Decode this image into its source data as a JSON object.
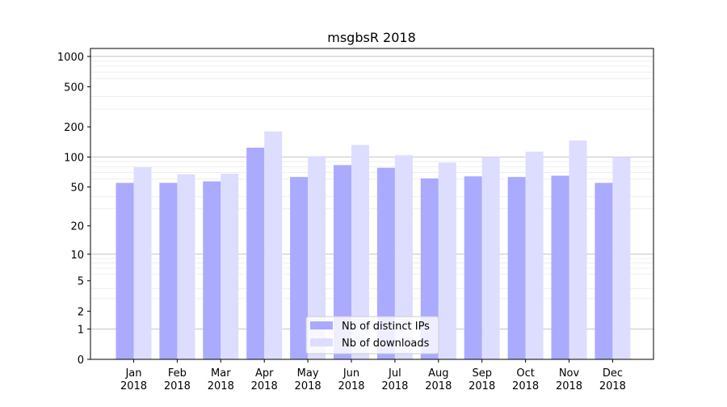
{
  "chart_data": {
    "type": "bar",
    "title": "msgbsR 2018",
    "xlabel": "",
    "ylabel": "",
    "yscale": "log(1+y)",
    "ylim": [
      0,
      1200
    ],
    "grid": true,
    "legend_position": "bottom-center",
    "categories": [
      [
        "Jan",
        "2018"
      ],
      [
        "Feb",
        "2018"
      ],
      [
        "Mar",
        "2018"
      ],
      [
        "Apr",
        "2018"
      ],
      [
        "May",
        "2018"
      ],
      [
        "Jun",
        "2018"
      ],
      [
        "Jul",
        "2018"
      ],
      [
        "Aug",
        "2018"
      ],
      [
        "Sep",
        "2018"
      ],
      [
        "Oct",
        "2018"
      ],
      [
        "Nov",
        "2018"
      ],
      [
        "Dec",
        "2018"
      ]
    ],
    "yticks": [
      0,
      1,
      2,
      5,
      10,
      20,
      50,
      100,
      200,
      500,
      1000
    ],
    "series": [
      {
        "name": "Nb of distinct IPs",
        "color": "#aaaaff",
        "values": [
          55,
          55,
          57,
          124,
          63,
          83,
          78,
          61,
          64,
          63,
          65,
          55
        ]
      },
      {
        "name": "Nb of downloads",
        "color": "#ddddff",
        "values": [
          79,
          67,
          68,
          180,
          102,
          132,
          104,
          88,
          100,
          113,
          146,
          100
        ]
      }
    ]
  }
}
